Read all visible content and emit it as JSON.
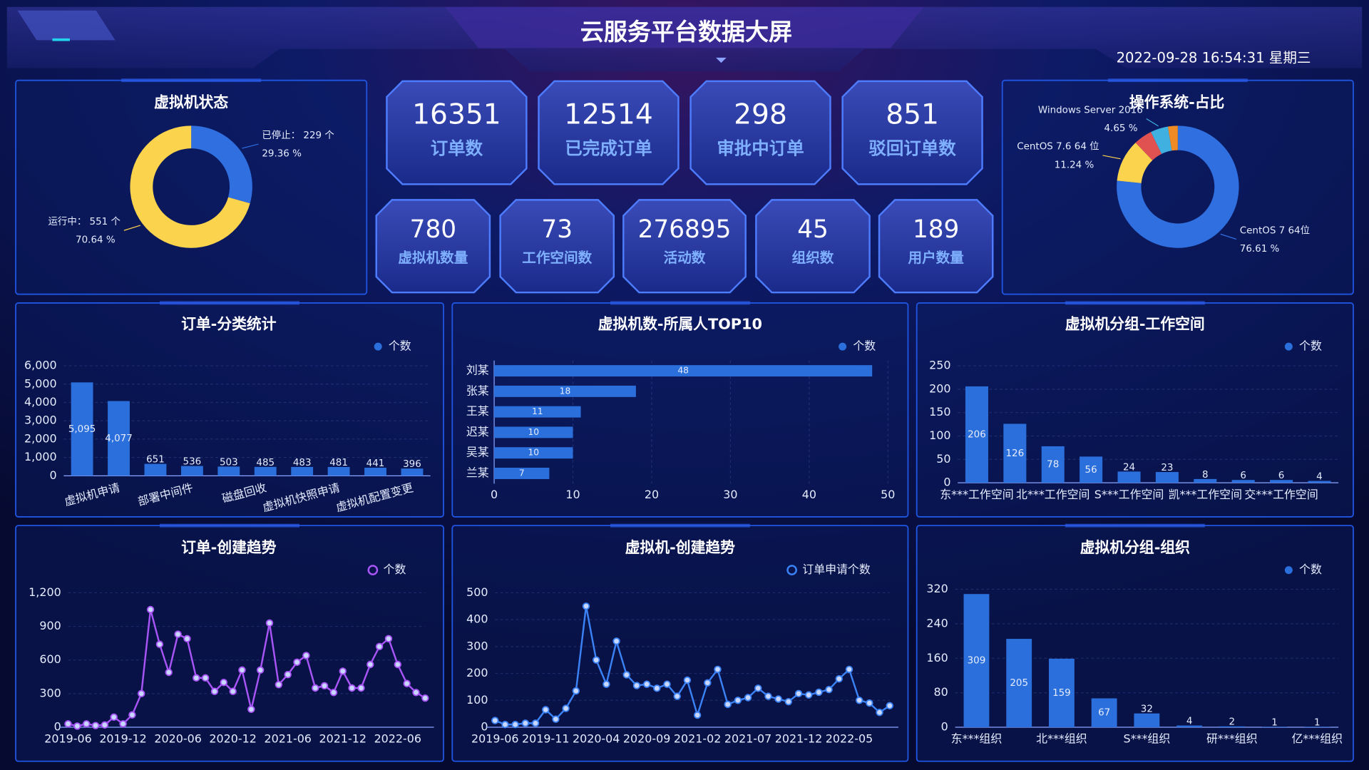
{
  "header": {
    "title": "云服务平台数据大屏",
    "datetime": "2022-09-28 16:54:31 星期三"
  },
  "stats": [
    {
      "value": 16351,
      "label": "订单数"
    },
    {
      "value": 12514,
      "label": "已完成订单"
    },
    {
      "value": 298,
      "label": "审批中订单"
    },
    {
      "value": 851,
      "label": "驳回订单数"
    },
    {
      "value": 780,
      "label": "虚拟机数量"
    },
    {
      "value": 73,
      "label": "工作空间数"
    },
    {
      "value": 276895,
      "label": "活动数"
    },
    {
      "value": 45,
      "label": "组织数"
    },
    {
      "value": 189,
      "label": "用户数量"
    }
  ],
  "chart_data": [
    {
      "type": "pie",
      "title": "虚拟机状态",
      "values": [
        229,
        551
      ],
      "colors": [
        "#2f6fe0",
        "#fcd34d"
      ],
      "value_labels": [
        "已停止： 229 个",
        "运行中： 551 个"
      ],
      "percent_labels": [
        "29.36 %",
        "70.64 %"
      ]
    },
    {
      "type": "pie",
      "title": "操作系统-占比",
      "categories": [
        "CentOS 7 64位",
        "CentOS 7.6 64 位",
        null,
        "Windows Server 2016",
        null
      ],
      "values": [
        76.61,
        11.24,
        4.9,
        4.65,
        2.6
      ],
      "colors": [
        "#2f6fe0",
        "#fcd34d",
        "#e05252",
        "#3fb0e0",
        "#f08a24"
      ],
      "value_labels": [
        "76.61 %",
        "11.24 %",
        null,
        "4.65 %",
        null
      ]
    },
    {
      "type": "bar",
      "title": "订单-分类统计",
      "categories": [
        null,
        "虚拟机申请",
        null,
        "部署中间件",
        null,
        "磁盘回收",
        null,
        "虚拟机快照申请",
        null,
        "虚拟机配置变更"
      ],
      "series": [
        {
          "name": "个数",
          "color": "#2a6fdb",
          "values": [
            5095,
            4077,
            651,
            536,
            503,
            485,
            483,
            481,
            441,
            396
          ]
        }
      ],
      "value_labels": [
        "5,095",
        "4,077",
        "651",
        "536",
        "503",
        "485",
        "483",
        "481",
        "441",
        "396"
      ],
      "ylim": [
        0,
        6000
      ],
      "yticks": [
        0,
        {
          "value": 1000,
          "label": "1,000"
        },
        {
          "value": 2000,
          "label": "2,000"
        },
        {
          "value": 3000,
          "label": "3,000"
        },
        {
          "value": 4000,
          "label": "4,000"
        },
        {
          "value": 5000,
          "label": "5,000"
        },
        {
          "value": 6000,
          "label": "6,000"
        }
      ],
      "grid": true
    },
    {
      "type": "barh",
      "title": "虚拟机数-所属人TOP10",
      "categories": [
        "刘某",
        "张某",
        "王某",
        "迟某",
        "吴某",
        "兰某"
      ],
      "series": [
        {
          "name": "个数",
          "color": "#2a6fdb",
          "values": [
            48,
            18,
            11,
            10,
            10,
            7
          ]
        }
      ],
      "xlim": [
        0,
        50
      ],
      "xticks": [
        0,
        10,
        20,
        30,
        40,
        50
      ],
      "grid": true
    },
    {
      "type": "bar",
      "title": "虚拟机分组-工作空间",
      "categories": [
        "东***工作空间",
        null,
        "北***工作空间",
        null,
        "S***工作空间",
        null,
        "凯***工作空间",
        null,
        "交***工作空间",
        null
      ],
      "series": [
        {
          "name": "个数",
          "color": "#2a6fdb",
          "values": [
            206,
            126,
            78,
            56,
            24,
            23,
            8,
            6,
            6,
            4
          ]
        }
      ],
      "ylim": [
        0,
        250
      ],
      "yticks": [
        0,
        50,
        100,
        150,
        200,
        250
      ],
      "grid": true
    },
    {
      "type": "line",
      "title": "订单-创建趋势",
      "categories": [
        "2019-06",
        null,
        null,
        null,
        null,
        null,
        "2019-12",
        null,
        null,
        null,
        null,
        null,
        "2020-06",
        null,
        null,
        null,
        null,
        null,
        "2020-12",
        null,
        null,
        null,
        null,
        null,
        "2021-06",
        null,
        null,
        null,
        null,
        null,
        "2021-12",
        null,
        null,
        null,
        null,
        null,
        "2022-06",
        null,
        null,
        null
      ],
      "series": [
        {
          "name": "个数",
          "color": "#a855f7",
          "values": [
            30,
            10,
            30,
            15,
            20,
            90,
            30,
            110,
            300,
            1050,
            740,
            490,
            830,
            790,
            440,
            440,
            320,
            400,
            320,
            510,
            160,
            510,
            930,
            380,
            470,
            580,
            640,
            350,
            370,
            310,
            500,
            350,
            350,
            560,
            720,
            790,
            560,
            390,
            310,
            260
          ]
        }
      ],
      "ylim": [
        0,
        1200
      ],
      "yticks": [
        0,
        300,
        600,
        900,
        {
          "value": 1200,
          "label": "1,200"
        }
      ],
      "grid": true
    },
    {
      "type": "line",
      "title": "虚拟机-创建趋势",
      "categories": [
        "2019-06",
        null,
        null,
        null,
        null,
        "2019-11",
        null,
        null,
        null,
        null,
        "2020-04",
        null,
        null,
        null,
        null,
        "2020-09",
        null,
        null,
        null,
        null,
        "2021-02",
        null,
        null,
        null,
        null,
        "2021-07",
        null,
        null,
        null,
        null,
        "2021-12",
        null,
        null,
        null,
        null,
        "2022-05",
        null,
        null,
        null,
        null
      ],
      "series": [
        {
          "name": "订单申请个数",
          "color": "#3b82f6",
          "values": [
            25,
            10,
            10,
            15,
            15,
            65,
            30,
            70,
            135,
            450,
            250,
            160,
            320,
            195,
            155,
            160,
            145,
            160,
            115,
            175,
            45,
            165,
            215,
            85,
            100,
            110,
            145,
            115,
            105,
            95,
            125,
            120,
            130,
            140,
            180,
            215,
            100,
            90,
            55,
            80
          ]
        }
      ],
      "ylim": [
        0,
        500
      ],
      "yticks": [
        0,
        100,
        200,
        300,
        400,
        500
      ],
      "grid": true
    },
    {
      "type": "bar",
      "title": "虚拟机分组-组织",
      "categories": [
        "东***组织",
        null,
        "北***组织",
        null,
        "S***组织",
        null,
        "研***组织",
        null,
        "亿***组织"
      ],
      "series": [
        {
          "name": "个数",
          "color": "#2a6fdb",
          "values": [
            309,
            205,
            159,
            67,
            32,
            4,
            2,
            1,
            1
          ]
        }
      ],
      "ylim": [
        0,
        320
      ],
      "yticks": [
        0,
        80,
        160,
        240,
        320
      ],
      "grid": true
    }
  ]
}
